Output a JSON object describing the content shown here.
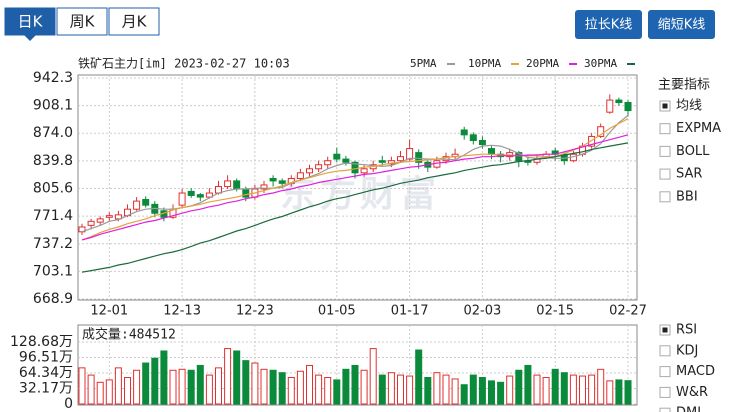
{
  "tabs": {
    "items": [
      "日K",
      "周K",
      "月K"
    ],
    "selected": 0
  },
  "buttons": [
    "拉长K线",
    "缩短K线"
  ],
  "indicators_main": {
    "title": "主要指标",
    "items": [
      "均线",
      "EXPMA",
      "BOLL",
      "SAR",
      "BBI"
    ],
    "selected": 0
  },
  "indicators_sub": {
    "items": [
      "RSI",
      "KDJ",
      "MACD",
      "W&R",
      "DMI"
    ],
    "selected": 0
  },
  "watermark": "东方财富",
  "chart_data": [
    {
      "type": "candlestick",
      "title": "铁矿石主力[im] 2023-02-27 10:03",
      "categories": [
        null,
        null,
        null,
        "12-01",
        null,
        null,
        null,
        null,
        null,
        null,
        null,
        "12-13",
        null,
        null,
        null,
        null,
        null,
        null,
        null,
        "12-23",
        null,
        null,
        null,
        null,
        null,
        null,
        null,
        null,
        "01-05",
        null,
        null,
        null,
        null,
        null,
        null,
        null,
        "01-17",
        null,
        null,
        null,
        null,
        null,
        null,
        null,
        "02-03",
        null,
        null,
        null,
        null,
        null,
        null,
        null,
        "02-15",
        null,
        null,
        null,
        null,
        null,
        null,
        null,
        "02-27"
      ],
      "ohlc": [
        [
          752,
          762,
          748,
          758
        ],
        [
          760,
          768,
          755,
          765
        ],
        [
          764,
          771,
          760,
          768
        ],
        [
          770,
          776,
          766,
          772
        ],
        [
          768,
          778,
          765,
          773
        ],
        [
          772,
          786,
          770,
          780
        ],
        [
          780,
          795,
          778,
          790
        ],
        [
          792,
          796,
          782,
          785
        ],
        [
          786,
          790,
          770,
          775
        ],
        [
          778,
          782,
          765,
          770
        ],
        [
          770,
          786,
          768,
          780
        ],
        [
          785,
          805,
          782,
          800
        ],
        [
          802,
          806,
          794,
          797
        ],
        [
          798,
          800,
          790,
          795
        ],
        [
          795,
          806,
          793,
          800
        ],
        [
          800,
          815,
          798,
          808
        ],
        [
          808,
          822,
          805,
          815
        ],
        [
          815,
          818,
          802,
          805
        ],
        [
          805,
          808,
          790,
          795
        ],
        [
          795,
          810,
          792,
          805
        ],
        [
          805,
          815,
          800,
          810
        ],
        [
          818,
          822,
          808,
          815
        ],
        [
          815,
          818,
          806,
          812
        ],
        [
          812,
          822,
          808,
          818
        ],
        [
          818,
          830,
          815,
          825
        ],
        [
          825,
          835,
          820,
          830
        ],
        [
          830,
          840,
          826,
          835
        ],
        [
          835,
          845,
          830,
          840
        ],
        [
          848,
          856,
          838,
          842
        ],
        [
          842,
          846,
          834,
          838
        ],
        [
          838,
          840,
          818,
          825
        ],
        [
          825,
          835,
          820,
          830
        ],
        [
          830,
          840,
          826,
          835
        ],
        [
          840,
          846,
          834,
          838
        ],
        [
          836,
          845,
          832,
          840
        ],
        [
          840,
          852,
          838,
          845
        ],
        [
          842,
          866,
          840,
          855
        ],
        [
          850,
          854,
          830,
          838
        ],
        [
          838,
          840,
          826,
          832
        ],
        [
          832,
          845,
          830,
          840
        ],
        [
          840,
          850,
          836,
          845
        ],
        [
          845,
          855,
          842,
          848
        ],
        [
          878,
          882,
          866,
          872
        ],
        [
          872,
          875,
          860,
          865
        ],
        [
          865,
          870,
          855,
          860
        ],
        [
          855,
          858,
          842,
          848
        ],
        [
          848,
          852,
          838,
          845
        ],
        [
          845,
          855,
          840,
          850
        ],
        [
          850,
          852,
          832,
          840
        ],
        [
          840,
          845,
          834,
          838
        ],
        [
          838,
          848,
          835,
          842
        ],
        [
          845,
          852,
          842,
          848
        ],
        [
          852,
          856,
          840,
          848
        ],
        [
          848,
          850,
          835,
          840
        ],
        [
          840,
          852,
          838,
          848
        ],
        [
          848,
          862,
          845,
          858
        ],
        [
          858,
          874,
          855,
          870
        ],
        [
          870,
          886,
          868,
          882
        ],
        [
          900,
          922,
          898,
          915
        ],
        [
          915,
          918,
          908,
          912
        ],
        [
          912,
          915,
          895,
          902
        ]
      ],
      "up_color": "#e0302f",
      "down_color": "#0a8a3a",
      "series": [
        {
          "name": "5PMA",
          "color": "#9a9a9a",
          "values": [
            752,
            756,
            760,
            765,
            767,
            772,
            777,
            780,
            781,
            780,
            780,
            782,
            784,
            788,
            794,
            800,
            803,
            805,
            805,
            806,
            806,
            806,
            807,
            812,
            816,
            820,
            824,
            830,
            834,
            837,
            836,
            835,
            834,
            833,
            834,
            838,
            843,
            843,
            842,
            842,
            842,
            841,
            847,
            854,
            858,
            859,
            858,
            854,
            849,
            844,
            843,
            844,
            843,
            843,
            845,
            848,
            853,
            861,
            875,
            887,
            896
          ]
        },
        {
          "name": "10PMA",
          "color": "#e6a23c",
          "values": [
            742,
            746,
            751,
            755,
            758,
            762,
            765,
            768,
            772,
            775,
            779,
            782,
            784,
            786,
            789,
            791,
            793,
            795,
            798,
            800,
            803,
            806,
            809,
            813,
            816,
            819,
            822,
            825,
            827,
            828,
            830,
            832,
            833,
            835,
            837,
            838,
            839,
            840,
            841,
            842,
            844,
            845,
            846,
            847,
            848,
            848,
            847,
            847,
            846,
            846,
            846,
            845,
            845,
            849,
            853,
            858,
            865,
            872,
            880,
            886,
            892
          ]
        },
        {
          "name": "20PMA",
          "color": "#e020e0",
          "values": [
            742,
            745,
            749,
            752,
            755,
            758,
            761,
            764,
            766,
            769,
            772,
            775,
            778,
            780,
            783,
            785,
            788,
            790,
            793,
            795,
            798,
            800,
            803,
            805,
            808,
            810,
            813,
            815,
            817,
            819,
            821,
            823,
            824,
            826,
            828,
            830,
            832,
            833,
            835,
            837,
            838,
            840,
            842,
            843,
            845,
            845,
            846,
            846,
            846,
            847,
            847,
            848,
            848,
            851,
            854,
            857,
            860,
            863,
            866,
            869,
            872
          ]
        },
        {
          "name": "30PMA",
          "color": "#1a6b3c",
          "values": [
            702,
            704,
            706,
            708,
            711,
            713,
            716,
            719,
            722,
            725,
            727,
            730,
            734,
            738,
            741,
            745,
            749,
            753,
            756,
            760,
            764,
            768,
            771,
            775,
            779,
            783,
            786,
            790,
            793,
            795,
            798,
            801,
            804,
            806,
            809,
            812,
            814,
            816,
            819,
            821,
            823,
            825,
            828,
            830,
            832,
            834,
            835,
            837,
            839,
            840,
            842,
            843,
            845,
            847,
            849,
            851,
            854,
            856,
            858,
            860,
            862
          ]
        }
      ],
      "ylim": [
        668.9,
        942.3
      ],
      "yticks": [
        942.3,
        908.1,
        {
          "value": 874,
          "label": "874.0"
        },
        839.8,
        805.6,
        771.4,
        737.2,
        703.1,
        668.9
      ],
      "grid": true
    },
    {
      "type": "bar",
      "title": "成交量:484512",
      "values": [
        75,
        60,
        45,
        50,
        75,
        55,
        70,
        85,
        95,
        110,
        70,
        72,
        70,
        80,
        60,
        75,
        115,
        110,
        90,
        85,
        72,
        70,
        65,
        55,
        68,
        80,
        60,
        55,
        50,
        72,
        80,
        70,
        115,
        60,
        65,
        60,
        58,
        112,
        55,
        65,
        60,
        52,
        40,
        60,
        55,
        48,
        45,
        58,
        70,
        80,
        60,
        55,
        72,
        65,
        60,
        58,
        60,
        72,
        48,
        50,
        48.4512
      ],
      "ylim": [
        0,
        128.68
      ],
      "yticks": [
        {
          "value": 128.68,
          "label": "128.68万"
        },
        {
          "value": 96.51,
          "label": "96.51万"
        },
        {
          "value": 64.34,
          "label": "64.34万"
        },
        {
          "value": 32.17,
          "label": "32.17万"
        },
        0
      ],
      "grid": true
    }
  ]
}
